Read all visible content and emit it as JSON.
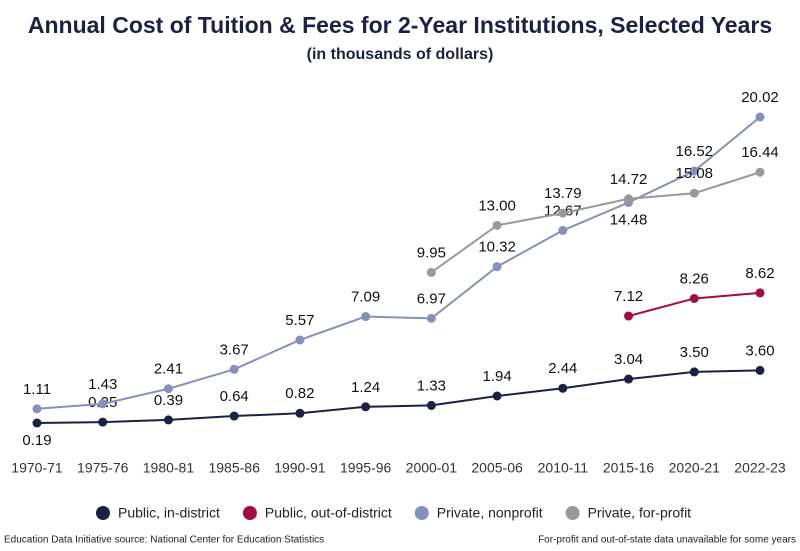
{
  "chart_data": {
    "type": "line",
    "title": "Annual Cost of Tuition & Fees for 2-Year Institutions, Selected Years",
    "subtitle": "(in thousands of dollars)",
    "categories": [
      "1970-71",
      "1975-76",
      "1980-81",
      "1985-86",
      "1990-91",
      "1995-96",
      "2000-01",
      "2005-06",
      "2010-11",
      "2015-16",
      "2020-21",
      "2022-23"
    ],
    "series": [
      {
        "name": "Public, in-district",
        "color": "#1b2145",
        "values": [
          0.19,
          0.25,
          0.39,
          0.64,
          0.82,
          1.24,
          1.33,
          1.94,
          2.44,
          3.04,
          3.5,
          3.6
        ],
        "value_labels": [
          "0.19",
          "0.25",
          "0.39",
          "0.64",
          "0.82",
          "1.24",
          "1.33",
          "1.94",
          "2.44",
          "3.04",
          "3.50",
          "3.60"
        ]
      },
      {
        "name": "Public, out-of-district",
        "color": "#a50d3d",
        "values": [
          null,
          null,
          null,
          null,
          null,
          null,
          null,
          null,
          null,
          7.12,
          8.26,
          8.62
        ]
      },
      {
        "name": "Private, nonprofit",
        "color": "#8690bd",
        "values": [
          1.11,
          1.43,
          2.41,
          3.67,
          5.57,
          7.09,
          6.97,
          10.32,
          12.67,
          14.48,
          16.52,
          20.02
        ]
      },
      {
        "name": "Private, for-profit",
        "color": "#999999",
        "values": [
          null,
          null,
          null,
          null,
          null,
          null,
          9.95,
          13,
          13.79,
          14.72,
          15.08,
          16.44
        ],
        "value_labels": [
          null,
          null,
          null,
          null,
          null,
          null,
          "9.95",
          "13.00",
          "13.79",
          "14.72",
          "15.08",
          "16.44"
        ]
      }
    ],
    "source": "Education Data Initiative source: National Center for Education Statistics",
    "note": "For-profit and out-of-state data unavailable for some years"
  }
}
